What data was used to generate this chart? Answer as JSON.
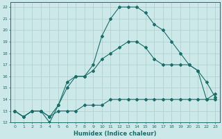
{
  "xlabel": "Humidex (Indice chaleur)",
  "background_color": "#cce8e8",
  "grid_color": "#aacece",
  "line_color": "#1a6e6a",
  "xlim": [
    -0.5,
    23.5
  ],
  "ylim": [
    12,
    22.4
  ],
  "xticks": [
    0,
    1,
    2,
    3,
    4,
    5,
    6,
    7,
    8,
    9,
    10,
    11,
    12,
    13,
    14,
    15,
    16,
    17,
    18,
    19,
    20,
    21,
    22,
    23
  ],
  "yticks": [
    12,
    13,
    14,
    15,
    16,
    17,
    18,
    19,
    20,
    21,
    22
  ],
  "line1_x": [
    0,
    1,
    2,
    3,
    4,
    5,
    6,
    7,
    8,
    9,
    10,
    11,
    12,
    13,
    14,
    15,
    16,
    17,
    18,
    19,
    20,
    21,
    22,
    23
  ],
  "line1_y": [
    13,
    12.5,
    13,
    13,
    12.5,
    13,
    13,
    13,
    13.5,
    13.5,
    13.5,
    14,
    14,
    14,
    14,
    14,
    14,
    14,
    14,
    14,
    14,
    14,
    14,
    14
  ],
  "line2_x": [
    0,
    1,
    2,
    3,
    4,
    5,
    6,
    7,
    8,
    9,
    10,
    11,
    12,
    13,
    14,
    15,
    16,
    17,
    18,
    19,
    20,
    21,
    22,
    23
  ],
  "line2_y": [
    13,
    12.5,
    13,
    13,
    12,
    13.5,
    15.5,
    16,
    16,
    17,
    19.5,
    21,
    22,
    22,
    22,
    21.5,
    20.5,
    20,
    19,
    18,
    17,
    16.5,
    14,
    14.5
  ],
  "line3_x": [
    0,
    1,
    2,
    3,
    4,
    5,
    6,
    7,
    8,
    9,
    10,
    11,
    12,
    13,
    14,
    15,
    16,
    17,
    18,
    19,
    20,
    21,
    22,
    23
  ],
  "line3_y": [
    13,
    12.5,
    13,
    13,
    12.5,
    13.5,
    15,
    16,
    16,
    16.5,
    17.5,
    18,
    18.5,
    19,
    19,
    18.5,
    17.5,
    17,
    17,
    17,
    17,
    16.5,
    15.5,
    14.2
  ]
}
